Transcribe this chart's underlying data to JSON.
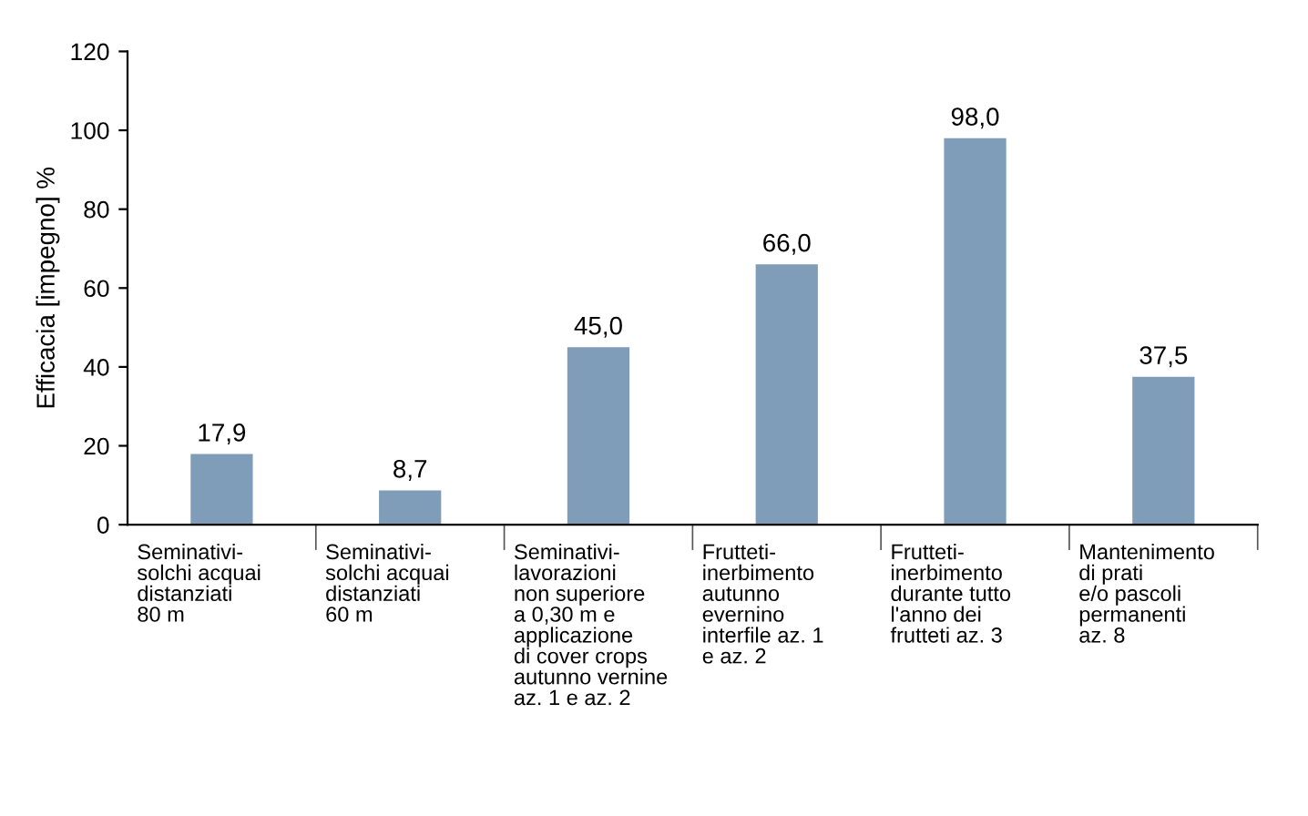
{
  "chart_data": {
    "type": "bar",
    "ylabel": "Efficacia [impegno] %",
    "categories": [
      "Seminativi-\nsolchi acquai\ndistanziati\n80 m",
      "Seminativi-\nsolchi acquai\ndistanziati\n60 m",
      "Seminativi-\nlavorazioni\nnon superiore\na 0,30 m e\napplicazione\ndi cover crops\nautunno vernine\naz. 1 e az. 2",
      "Frutteti-\ninerbimento\nautunno\nevernino\ninterfile az. 1\ne az. 2",
      "Frutteti-\ninerbimento\ndurante tutto\nl'anno dei\nfrutteti az. 3",
      "Mantenimento\ndi prati\ne/o pascoli\npermanenti\naz. 8"
    ],
    "values": [
      17.9,
      8.7,
      45.0,
      66.0,
      98.0,
      37.5
    ],
    "value_labels": [
      "17,9",
      "8,7",
      "45,0",
      "66,0",
      "98,0",
      "37,5"
    ],
    "color": "#7f9db9",
    "ylim": [
      0,
      120
    ],
    "yticks": [
      0,
      20,
      40,
      60,
      80,
      100,
      120
    ],
    "grid": false,
    "legend": false
  }
}
